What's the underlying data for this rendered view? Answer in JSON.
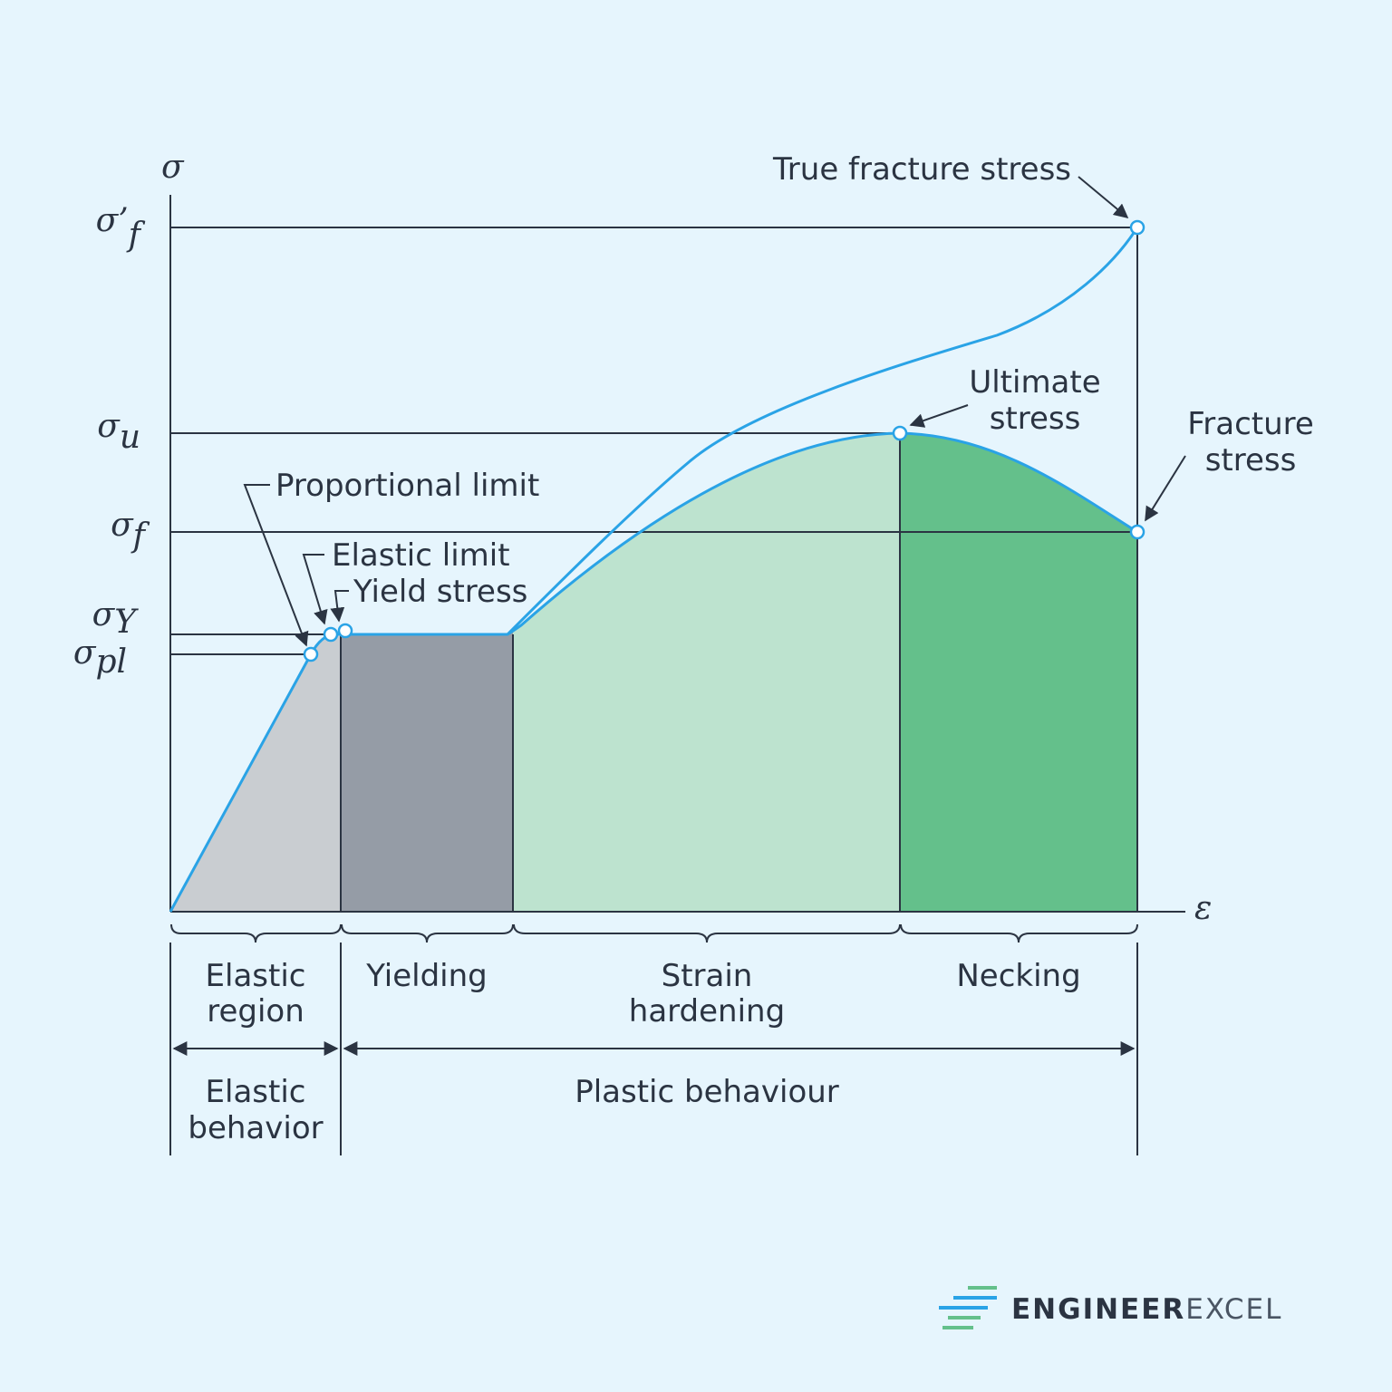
{
  "axes": {
    "y_label": "σ",
    "x_label": "ε"
  },
  "stress_levels": [
    {
      "symbol": "σ’",
      "subscript": "f"
    },
    {
      "symbol": "σ",
      "subscript": "u"
    },
    {
      "symbol": "σ",
      "subscript": "f"
    },
    {
      "symbol": "σ",
      "subscript": "Y"
    },
    {
      "symbol": "σ",
      "subscript": "pl"
    }
  ],
  "points": {
    "true_fracture_stress": "True fracture stress",
    "ultimate_stress": [
      "Ultimate",
      "stress"
    ],
    "fracture_stress": [
      "Fracture",
      "stress"
    ],
    "proportional_limit": "Proportional limit",
    "elastic_limit": "Elastic limit",
    "yield_stress": "Yield stress"
  },
  "regions": [
    [
      "Elastic",
      "region"
    ],
    [
      "Yielding"
    ],
    [
      "Strain",
      "hardening"
    ],
    [
      "Necking"
    ]
  ],
  "behaviors": [
    [
      "Elastic",
      "behavior"
    ],
    [
      "Plastic behaviour"
    ]
  ],
  "brand": {
    "part1": "ENGINEER",
    "part2": "EXCEL"
  }
}
